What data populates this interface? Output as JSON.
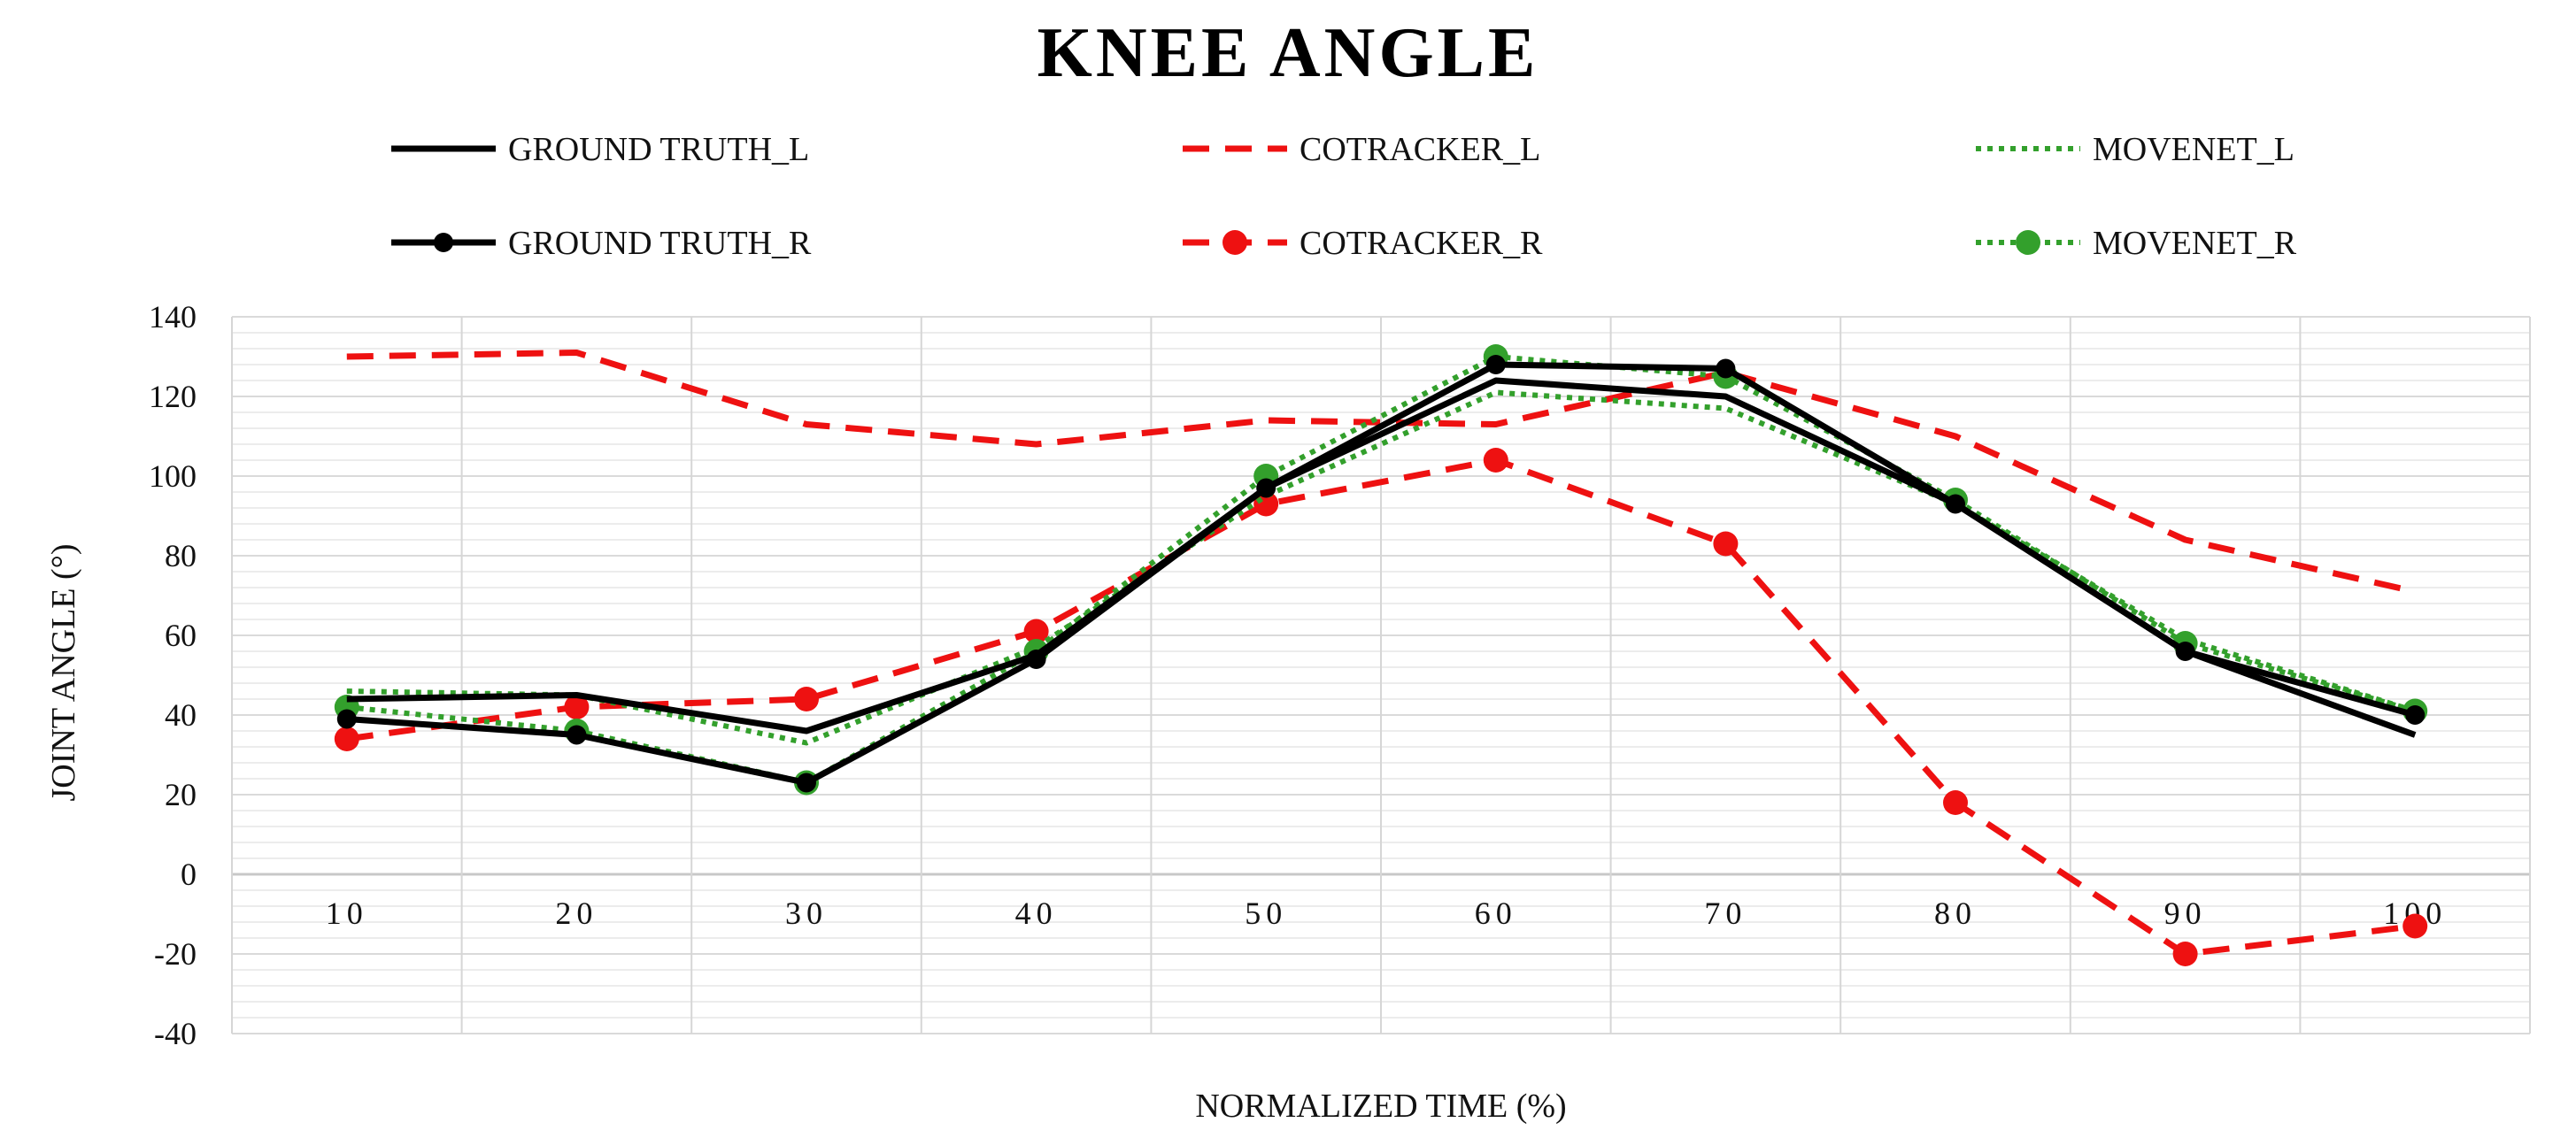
{
  "chart_data": {
    "type": "line",
    "title": "KNEE ANGLE",
    "xlabel": "NORMALIZED TIME (%)",
    "ylabel": "JOINT ANGLE (°)",
    "categories": [
      "10",
      "20",
      "30",
      "40",
      "50",
      "60",
      "70",
      "80",
      "90",
      "100"
    ],
    "ylim": [
      -40,
      140
    ],
    "yticks": [
      140,
      120,
      100,
      80,
      60,
      40,
      20,
      0,
      -20,
      -40
    ],
    "major_grid_step": 20,
    "minor_grid_step": 4,
    "legend_position": "top",
    "series": [
      {
        "name": "GROUND TRUTH_L",
        "color": "#000000",
        "style": "solid",
        "marker": false,
        "values": [
          44,
          45,
          36,
          55,
          97,
          124,
          120,
          93,
          56,
          35
        ]
      },
      {
        "name": "COTRACKER_L",
        "color": "#ee1111",
        "style": "dashed",
        "marker": false,
        "values": [
          130,
          131,
          113,
          108,
          114,
          113,
          126,
          110,
          84,
          71
        ]
      },
      {
        "name": "MOVENET_L",
        "color": "#33a02c",
        "style": "dotted",
        "marker": false,
        "values": [
          46,
          45,
          33,
          57,
          95,
          121,
          117,
          93,
          59,
          41
        ]
      },
      {
        "name": "GROUND TRUTH_R",
        "color": "#000000",
        "style": "solid",
        "marker": true,
        "values": [
          39,
          35,
          23,
          54,
          97,
          128,
          127,
          93,
          56,
          40
        ]
      },
      {
        "name": "COTRACKER_R",
        "color": "#ee1111",
        "style": "dashed",
        "marker": true,
        "values": [
          34,
          42,
          44,
          61,
          93,
          104,
          83,
          18,
          -20,
          -13
        ]
      },
      {
        "name": "MOVENET_R",
        "color": "#33a02c",
        "style": "dotted",
        "marker": true,
        "values": [
          42,
          36,
          23,
          56,
          100,
          130,
          125,
          94,
          58,
          41
        ]
      }
    ]
  }
}
